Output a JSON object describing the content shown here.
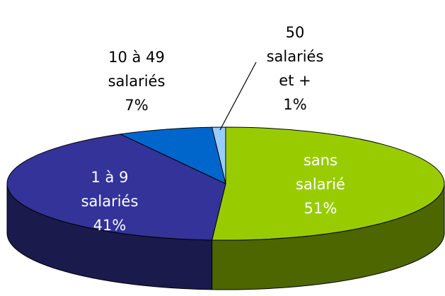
{
  "chart_data": {
    "type": "pie3d",
    "categories": [
      "sans\nsalarié",
      "1 à 9\nsalariés",
      "10 à 49\nsalariés",
      "50\nsalariés\net +"
    ],
    "values": [
      51,
      41,
      7,
      1
    ],
    "value_labels": [
      "51%",
      "41%",
      "7%",
      "1%"
    ],
    "colors": [
      "#99cc00",
      "#333399",
      "#0066cc",
      "#99ccff"
    ],
    "side_colors": [
      "#4d6600",
      "#1a1a4d",
      "#003366",
      "#4d6680"
    ],
    "label_colors": [
      "#ffffff",
      "#ffffff",
      "#000000",
      "#000000"
    ]
  }
}
